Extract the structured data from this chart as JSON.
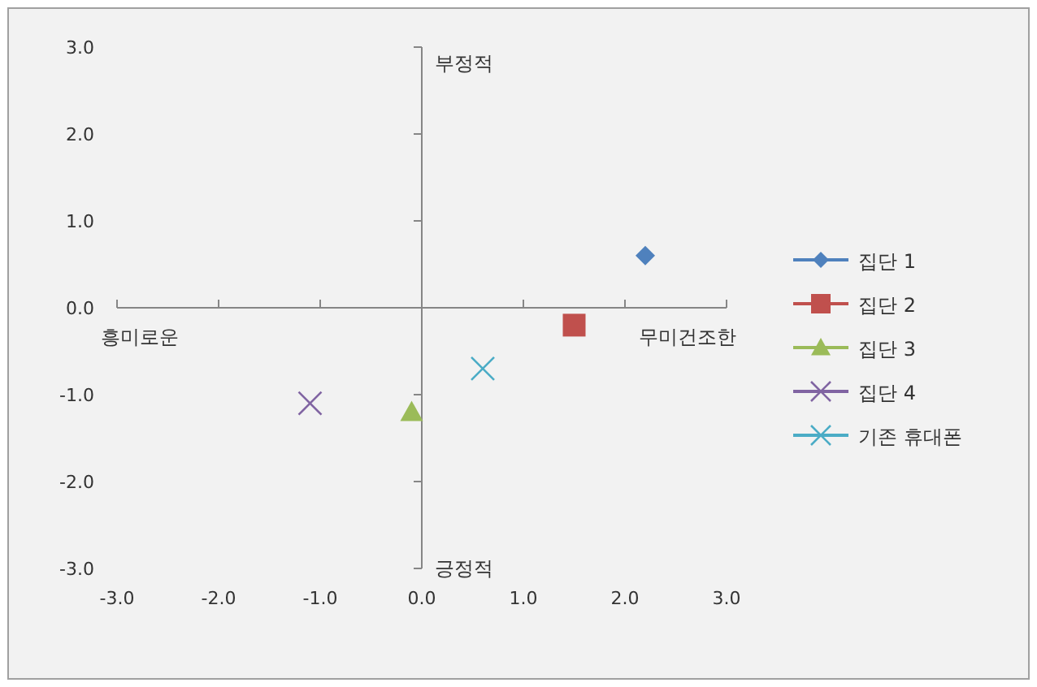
{
  "chart_data": {
    "type": "scatter",
    "series": [
      {
        "name": "집단 1",
        "color": "#4f81bd",
        "marker": "diamond",
        "x": [
          2.2
        ],
        "values": [
          0.6
        ]
      },
      {
        "name": "집단 2",
        "color": "#c0504d",
        "marker": "square",
        "x": [
          1.5
        ],
        "values": [
          -0.2
        ]
      },
      {
        "name": "집단 3",
        "color": "#9bbb59",
        "marker": "triangle",
        "x": [
          -0.1
        ],
        "values": [
          -1.2
        ]
      },
      {
        "name": "집단 4",
        "color": "#8064a2",
        "marker": "cross",
        "x": [
          -1.1
        ],
        "values": [
          -1.1
        ]
      },
      {
        "name": "기존 휴대폰",
        "color": "#4bacc6",
        "marker": "cross",
        "x": [
          0.6
        ],
        "values": [
          -0.7
        ]
      }
    ],
    "xlim": [
      -3,
      3
    ],
    "ylim": [
      -3,
      3
    ],
    "xticks": [
      {
        "value": -3,
        "label": "-3.0"
      },
      {
        "value": -2,
        "label": "-2.0"
      },
      {
        "value": -1,
        "label": "-1.0"
      },
      {
        "value": 0,
        "label": "0.0"
      },
      {
        "value": 1,
        "label": "1.0"
      },
      {
        "value": 2,
        "label": "2.0"
      },
      {
        "value": 3,
        "label": "3.0"
      }
    ],
    "yticks": [
      {
        "value": -3,
        "label": "-3.0"
      },
      {
        "value": -2,
        "label": "-2.0"
      },
      {
        "value": -1,
        "label": "-1.0"
      },
      {
        "value": 0,
        "label": "0.0"
      },
      {
        "value": 1,
        "label": "1.0"
      },
      {
        "value": 2,
        "label": "2.0"
      },
      {
        "value": 3,
        "label": "3.0"
      }
    ],
    "annotations": [
      "부정적",
      "긍정적",
      "흥미로운",
      "무미건조한"
    ],
    "legend": "right"
  }
}
